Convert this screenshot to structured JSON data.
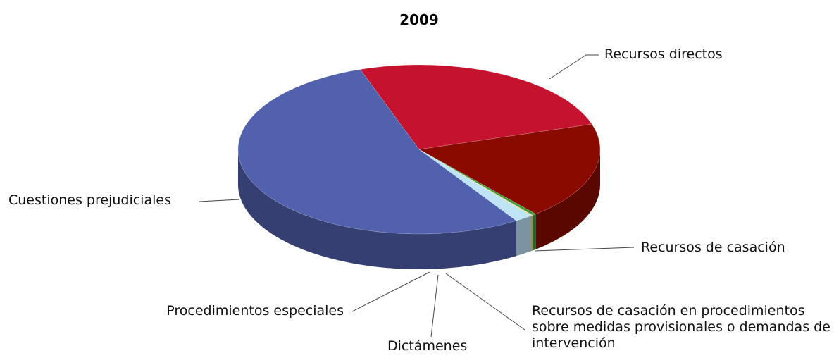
{
  "chart_data": {
    "type": "pie3d",
    "title": "2009",
    "categories": [
      "Recursos directos",
      "Recursos de casación",
      "Recursos de casación en procedimientos sobre medidas provisionales o demandas de intervención",
      "Dictámenes",
      "Procedimientos especiales",
      "Cuestiones prejudiciales"
    ],
    "values": [
      143,
      105,
      2,
      1,
      9,
      302
    ],
    "colors": [
      "#c4122f",
      "#8b0a00",
      "#3a9a3a",
      "#e0dc8a",
      "#bfe4f6",
      "#5161ae"
    ]
  }
}
